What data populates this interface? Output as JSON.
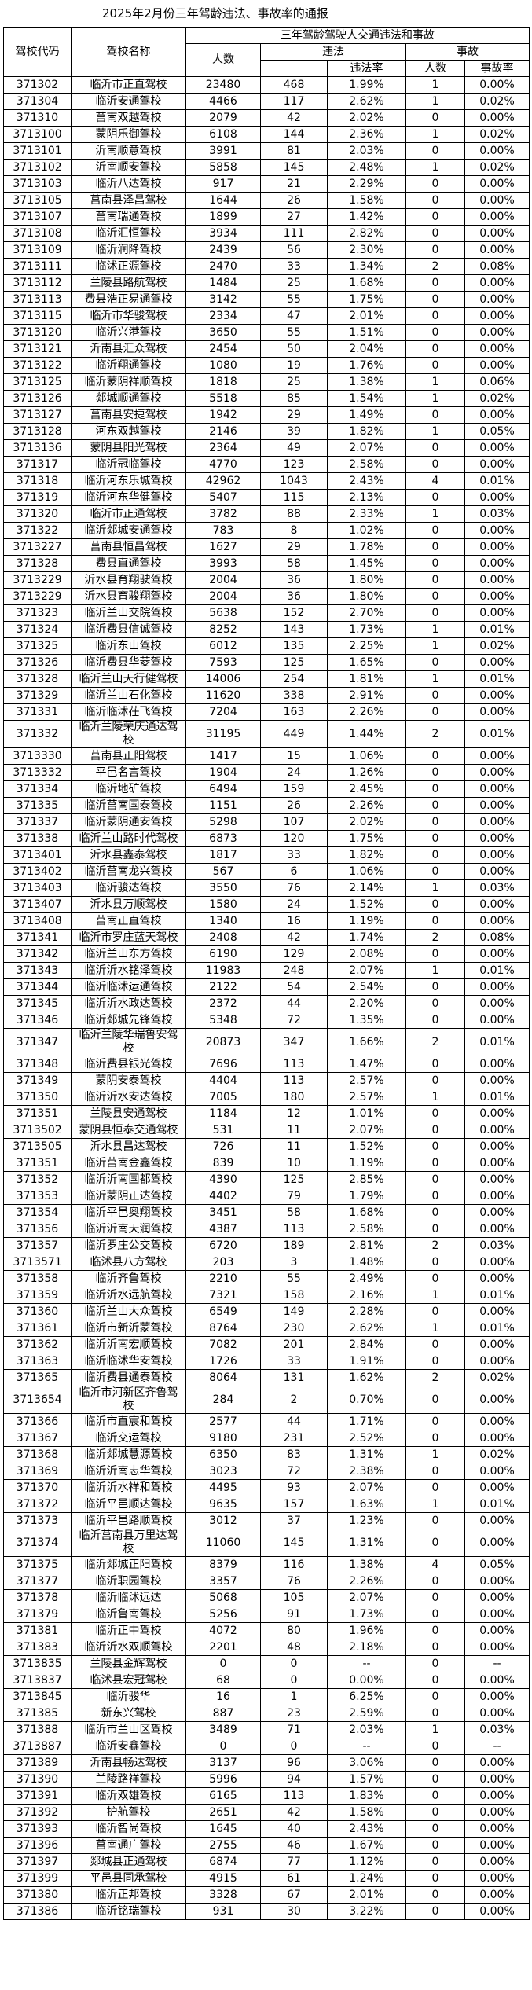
{
  "title": "2025年2月份三年驾龄违法、事故率的通报",
  "header": {
    "code": "驾校代码",
    "name": "驾校名称",
    "group": "三年驾龄驾驶人交通违法和事故",
    "count": "人数",
    "violation": "违法",
    "violation_rate": "违法率",
    "accident": "事故",
    "accident_count": "人数",
    "accident_rate": "事故率"
  },
  "table": {
    "rows": [
      [
        "371302",
        "临沂市正直驾校",
        "23480",
        "468",
        "1.99%",
        "1",
        "0.00%"
      ],
      [
        "371304",
        "临沂安通驾校",
        "4466",
        "117",
        "2.62%",
        "1",
        "0.02%"
      ],
      [
        "371310",
        "莒南双越驾校",
        "2079",
        "42",
        "2.02%",
        "0",
        "0.00%"
      ],
      [
        "3713100",
        "蒙阴乐御驾校",
        "6108",
        "144",
        "2.36%",
        "1",
        "0.02%"
      ],
      [
        "3713101",
        "沂南顺意驾校",
        "3991",
        "81",
        "2.03%",
        "0",
        "0.00%"
      ],
      [
        "3713102",
        "沂南顺安驾校",
        "5858",
        "145",
        "2.48%",
        "1",
        "0.02%"
      ],
      [
        "3713103",
        "临沂八达驾校",
        "917",
        "21",
        "2.29%",
        "0",
        "0.00%"
      ],
      [
        "3713105",
        "莒南县泽昌驾校",
        "1644",
        "26",
        "1.58%",
        "0",
        "0.00%"
      ],
      [
        "3713107",
        "莒南瑞通驾校",
        "1899",
        "27",
        "1.42%",
        "0",
        "0.00%"
      ],
      [
        "3713108",
        "临沂汇恒驾校",
        "3934",
        "111",
        "2.82%",
        "0",
        "0.00%"
      ],
      [
        "3713109",
        "临沂润降驾校",
        "2439",
        "56",
        "2.30%",
        "0",
        "0.00%"
      ],
      [
        "3713111",
        "临沭正源驾校",
        "2470",
        "33",
        "1.34%",
        "2",
        "0.08%"
      ],
      [
        "3713112",
        "兰陵县路航驾校",
        "1484",
        "25",
        "1.68%",
        "0",
        "0.00%"
      ],
      [
        "3713113",
        "费县浩正易通驾校",
        "3142",
        "55",
        "1.75%",
        "0",
        "0.00%"
      ],
      [
        "3713115",
        "临沂市华骏驾校",
        "2334",
        "47",
        "2.01%",
        "0",
        "0.00%"
      ],
      [
        "3713120",
        "临沂兴港驾校",
        "3650",
        "55",
        "1.51%",
        "0",
        "0.00%"
      ],
      [
        "3713121",
        "沂南县汇众驾校",
        "2454",
        "50",
        "2.04%",
        "0",
        "0.00%"
      ],
      [
        "3713122",
        "临沂翔通驾校",
        "1080",
        "19",
        "1.76%",
        "0",
        "0.00%"
      ],
      [
        "3713125",
        "临沂蒙阴祥顺驾校",
        "1818",
        "25",
        "1.38%",
        "1",
        "0.06%"
      ],
      [
        "3713126",
        "郯城顺通驾校",
        "5518",
        "85",
        "1.54%",
        "1",
        "0.02%"
      ],
      [
        "3713127",
        "莒南县安捷驾校",
        "1942",
        "29",
        "1.49%",
        "0",
        "0.00%"
      ],
      [
        "3713128",
        "河东双越驾校",
        "2146",
        "39",
        "1.82%",
        "1",
        "0.05%"
      ],
      [
        "3713136",
        "蒙阴县阳光驾校",
        "2364",
        "49",
        "2.07%",
        "0",
        "0.00%"
      ],
      [
        "371317",
        "临沂冠临驾校",
        "4770",
        "123",
        "2.58%",
        "0",
        "0.00%"
      ],
      [
        "371318",
        "临沂河东乐城驾校",
        "42962",
        "1043",
        "2.43%",
        "4",
        "0.01%"
      ],
      [
        "371319",
        "临沂河东华健驾校",
        "5407",
        "115",
        "2.13%",
        "0",
        "0.00%"
      ],
      [
        "371320",
        "临沂市正通驾校",
        "3782",
        "88",
        "2.33%",
        "1",
        "0.03%"
      ],
      [
        "371322",
        "临沂郯城安通驾校",
        "783",
        "8",
        "1.02%",
        "0",
        "0.00%"
      ],
      [
        "3713227",
        "莒南县恒昌驾校",
        "1627",
        "29",
        "1.78%",
        "0",
        "0.00%"
      ],
      [
        "371328",
        "费县直通驾校",
        "3993",
        "58",
        "1.45%",
        "0",
        "0.00%"
      ],
      [
        "3713229",
        "沂水县育翔驶驾校",
        "2004",
        "36",
        "1.80%",
        "0",
        "0.00%"
      ],
      [
        "3713229",
        "沂水县育骏翔驾校",
        "2004",
        "36",
        "1.80%",
        "0",
        "0.00%"
      ],
      [
        "371323",
        "临沂兰山交院驾校",
        "5638",
        "152",
        "2.70%",
        "0",
        "0.00%"
      ],
      [
        "371324",
        "临沂费县信诚驾校",
        "8252",
        "143",
        "1.73%",
        "1",
        "0.01%"
      ],
      [
        "371325",
        "临沂东山驾校",
        "6012",
        "135",
        "2.25%",
        "1",
        "0.02%"
      ],
      [
        "371326",
        "临沂费县华菱驾校",
        "7593",
        "125",
        "1.65%",
        "0",
        "0.00%"
      ],
      [
        "371328",
        "临沂兰山天行健驾校",
        "14006",
        "254",
        "1.81%",
        "1",
        "0.01%"
      ],
      [
        "371329",
        "临沂兰山石化驾校",
        "11620",
        "338",
        "2.91%",
        "0",
        "0.00%"
      ],
      [
        "371331",
        "临沂临沭茌飞驾校",
        "7204",
        "163",
        "2.26%",
        "0",
        "0.00%"
      ],
      [
        "371332",
        "临沂兰陵荣庆通达驾校",
        "31195",
        "449",
        "1.44%",
        "2",
        "0.01%"
      ],
      [
        "3713330",
        "莒南县正阳驾校",
        "1417",
        "15",
        "1.06%",
        "0",
        "0.00%"
      ],
      [
        "3713332",
        "平邑名言驾校",
        "1904",
        "24",
        "1.26%",
        "0",
        "0.00%"
      ],
      [
        "371334",
        "临沂地矿驾校",
        "6494",
        "159",
        "2.45%",
        "0",
        "0.00%"
      ],
      [
        "371335",
        "临沂莒南国泰驾校",
        "1151",
        "26",
        "2.26%",
        "0",
        "0.00%"
      ],
      [
        "371337",
        "临沂蒙阴通安驾校",
        "5298",
        "107",
        "2.02%",
        "0",
        "0.00%"
      ],
      [
        "371338",
        "临沂兰山路时代驾校",
        "6873",
        "120",
        "1.75%",
        "0",
        "0.00%"
      ],
      [
        "3713401",
        "沂水县鑫泰驾校",
        "1817",
        "33",
        "1.82%",
        "0",
        "0.00%"
      ],
      [
        "3713402",
        "临沂莒南龙兴驾校",
        "567",
        "6",
        "1.06%",
        "0",
        "0.00%"
      ],
      [
        "3713403",
        "临沂骏达驾校",
        "3550",
        "76",
        "2.14%",
        "1",
        "0.03%"
      ],
      [
        "3713407",
        "沂水县万顺驾校",
        "1580",
        "24",
        "1.52%",
        "0",
        "0.00%"
      ],
      [
        "3713408",
        "莒南正直驾校",
        "1340",
        "16",
        "1.19%",
        "0",
        "0.00%"
      ],
      [
        "371341",
        "临沂市罗庄蓝天驾校",
        "2408",
        "42",
        "1.74%",
        "2",
        "0.08%"
      ],
      [
        "371342",
        "临沂兰山东方驾校",
        "6190",
        "129",
        "2.08%",
        "0",
        "0.00%"
      ],
      [
        "371343",
        "临沂沂水铭泽驾校",
        "11983",
        "248",
        "2.07%",
        "1",
        "0.01%"
      ],
      [
        "371344",
        "临沂临沭运通驾校",
        "2122",
        "54",
        "2.54%",
        "0",
        "0.00%"
      ],
      [
        "371345",
        "临沂沂水政达驾校",
        "2372",
        "44",
        "2.20%",
        "0",
        "0.00%"
      ],
      [
        "371346",
        "临沂郯城先锋驾校",
        "5348",
        "72",
        "1.35%",
        "0",
        "0.00%"
      ],
      [
        "371347",
        "临沂兰陵华瑞鲁安驾校",
        "20873",
        "347",
        "1.66%",
        "2",
        "0.01%"
      ],
      [
        "371348",
        "临沂费县银光驾校",
        "7696",
        "113",
        "1.47%",
        "0",
        "0.00%"
      ],
      [
        "371349",
        "蒙阴安泰驾校",
        "4404",
        "113",
        "2.57%",
        "0",
        "0.00%"
      ],
      [
        "371350",
        "临沂沂水安达驾校",
        "7005",
        "180",
        "2.57%",
        "1",
        "0.01%"
      ],
      [
        "371351",
        "兰陵县安通驾校",
        "1184",
        "12",
        "1.01%",
        "0",
        "0.00%"
      ],
      [
        "3713502",
        "蒙阴县恒泰交通驾校",
        "531",
        "11",
        "2.07%",
        "0",
        "0.00%"
      ],
      [
        "3713505",
        "沂水县昌达驾校",
        "726",
        "11",
        "1.52%",
        "0",
        "0.00%"
      ],
      [
        "371351",
        "临沂莒南金鑫驾校",
        "839",
        "10",
        "1.19%",
        "0",
        "0.00%"
      ],
      [
        "371352",
        "临沂沂南国都驾校",
        "4390",
        "125",
        "2.85%",
        "0",
        "0.00%"
      ],
      [
        "371353",
        "临沂蒙阴正达驾校",
        "4402",
        "79",
        "1.79%",
        "0",
        "0.00%"
      ],
      [
        "371354",
        "临沂平邑奥翔驾校",
        "3451",
        "58",
        "1.68%",
        "0",
        "0.00%"
      ],
      [
        "371356",
        "临沂沂南天润驾校",
        "4387",
        "113",
        "2.58%",
        "0",
        "0.00%"
      ],
      [
        "371357",
        "临沂罗庄公交驾校",
        "6720",
        "189",
        "2.81%",
        "2",
        "0.03%"
      ],
      [
        "3713571",
        "临沭县八方驾校",
        "203",
        "3",
        "1.48%",
        "0",
        "0.00%"
      ],
      [
        "371358",
        "临沂齐鲁驾校",
        "2210",
        "55",
        "2.49%",
        "0",
        "0.00%"
      ],
      [
        "371359",
        "临沂沂水远航驾校",
        "7321",
        "158",
        "2.16%",
        "1",
        "0.01%"
      ],
      [
        "371360",
        "临沂兰山大众驾校",
        "6549",
        "149",
        "2.28%",
        "0",
        "0.00%"
      ],
      [
        "371361",
        "临沂市新沂蒙驾校",
        "8764",
        "230",
        "2.62%",
        "1",
        "0.01%"
      ],
      [
        "371362",
        "临沂沂南宏顺驾校",
        "7082",
        "201",
        "2.84%",
        "0",
        "0.00%"
      ],
      [
        "371363",
        "临沂临沭华安驾校",
        "1726",
        "33",
        "1.91%",
        "0",
        "0.00%"
      ],
      [
        "371365",
        "临沂费县通泰驾校",
        "8064",
        "131",
        "1.62%",
        "2",
        "0.02%"
      ],
      [
        "3713654",
        "临沂市河新区齐鲁驾校",
        "284",
        "2",
        "0.70%",
        "0",
        "0.00%"
      ],
      [
        "371366",
        "临沂市直宸和驾校",
        "2577",
        "44",
        "1.71%",
        "0",
        "0.00%"
      ],
      [
        "371367",
        "临沂交运驾校",
        "9180",
        "231",
        "2.52%",
        "0",
        "0.00%"
      ],
      [
        "371368",
        "临沂郯城慧源驾校",
        "6350",
        "83",
        "1.31%",
        "1",
        "0.02%"
      ],
      [
        "371369",
        "临沂沂南志华驾校",
        "3023",
        "72",
        "2.38%",
        "0",
        "0.00%"
      ],
      [
        "371370",
        "临沂沂水祥和驾校",
        "4495",
        "93",
        "2.07%",
        "0",
        "0.00%"
      ],
      [
        "371372",
        "临沂平邑顺达驾校",
        "9635",
        "157",
        "1.63%",
        "1",
        "0.01%"
      ],
      [
        "371373",
        "临沂平邑路顺驾校",
        "3012",
        "37",
        "1.23%",
        "0",
        "0.00%"
      ],
      [
        "371374",
        "临沂莒南县万里达驾校",
        "11060",
        "145",
        "1.31%",
        "0",
        "0.00%"
      ],
      [
        "371375",
        "临沂郯城正阳驾校",
        "8379",
        "116",
        "1.38%",
        "4",
        "0.05%"
      ],
      [
        "371377",
        "临沂职园驾校",
        "3357",
        "76",
        "2.26%",
        "0",
        "0.00%"
      ],
      [
        "371378",
        "临沂临沭远达",
        "5068",
        "105",
        "2.07%",
        "0",
        "0.00%"
      ],
      [
        "371379",
        "临沂鲁南驾校",
        "5256",
        "91",
        "1.73%",
        "0",
        "0.00%"
      ],
      [
        "371381",
        "临沂正中驾校",
        "4072",
        "80",
        "1.96%",
        "0",
        "0.00%"
      ],
      [
        "371383",
        "临沂沂水双顺驾校",
        "2201",
        "48",
        "2.18%",
        "0",
        "0.00%"
      ],
      [
        "3713835",
        "兰陵县金辉驾校",
        "0",
        "0",
        "--",
        "0",
        "--"
      ],
      [
        "3713837",
        "临沭县宏冠驾校",
        "68",
        "0",
        "0.00%",
        "0",
        "0.00%"
      ],
      [
        "3713845",
        "临沂骏华",
        "16",
        "1",
        "6.25%",
        "0",
        "0.00%"
      ],
      [
        "371385",
        "新东兴驾校",
        "887",
        "23",
        "2.59%",
        "0",
        "0.00%"
      ],
      [
        "371388",
        "临沂市兰山区驾校",
        "3489",
        "71",
        "2.03%",
        "1",
        "0.03%"
      ],
      [
        "3713887",
        "临沂安鑫驾校",
        "0",
        "0",
        "--",
        "0",
        "--"
      ],
      [
        "371389",
        "沂南县畅达驾校",
        "3137",
        "96",
        "3.06%",
        "0",
        "0.00%"
      ],
      [
        "371390",
        "兰陵路祥驾校",
        "5996",
        "94",
        "1.57%",
        "0",
        "0.00%"
      ],
      [
        "371391",
        "临沂双雄驾校",
        "6165",
        "113",
        "1.83%",
        "0",
        "0.00%"
      ],
      [
        "371392",
        "护航驾校",
        "2651",
        "42",
        "1.58%",
        "0",
        "0.00%"
      ],
      [
        "371393",
        "临沂智尚驾校",
        "1645",
        "40",
        "2.43%",
        "0",
        "0.00%"
      ],
      [
        "371396",
        "莒南通广驾校",
        "2755",
        "46",
        "1.67%",
        "0",
        "0.00%"
      ],
      [
        "371397",
        "郯城县正通驾校",
        "6874",
        "77",
        "1.12%",
        "0",
        "0.00%"
      ],
      [
        "371399",
        "平邑县同承驾校",
        "4915",
        "61",
        "1.24%",
        "0",
        "0.00%"
      ],
      [
        "371380",
        "临沂正邦驾校",
        "3328",
        "67",
        "2.01%",
        "0",
        "0.00%"
      ],
      [
        "371386",
        "临沂铭瑞驾校",
        "931",
        "30",
        "3.22%",
        "0",
        "0.00%"
      ]
    ]
  }
}
